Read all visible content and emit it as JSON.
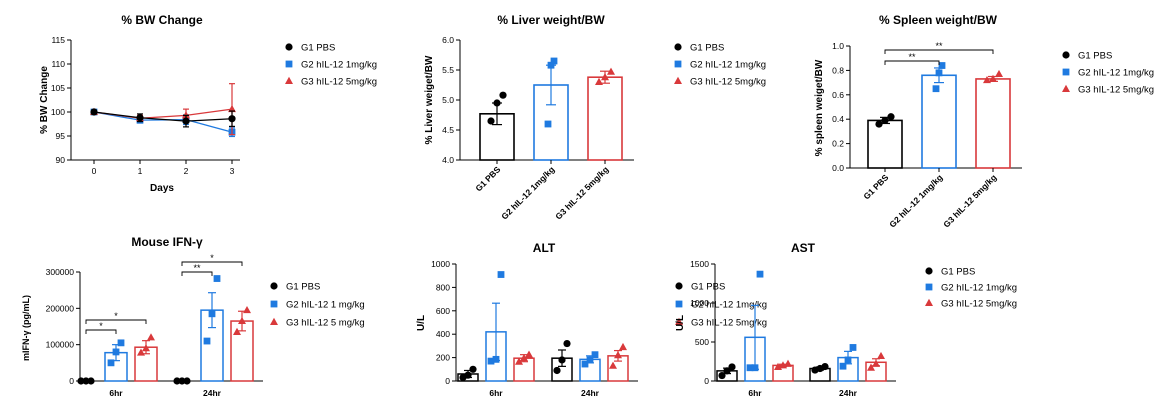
{
  "colors": {
    "g1": "#000000",
    "g2": "#1f7ae0",
    "g3": "#d9393b"
  },
  "legend": {
    "standard": [
      "G1 PBS",
      "G2 hIL-12 1mg/kg",
      "G3 hIL-12 5mg/kg"
    ],
    "ifng": [
      "G1 PBS",
      "G2 hIL-12 1 mg/kg",
      "G3 hIL-12 5 mg/kg"
    ]
  },
  "chart_data": [
    {
      "id": "bw",
      "type": "line",
      "title": "% BW Change",
      "xlabel": "Days",
      "ylabel": "% BW Change",
      "x": [
        0,
        1,
        2,
        3
      ],
      "xticks": [
        "0",
        "1",
        "2",
        "3"
      ],
      "ylim": [
        90,
        115
      ],
      "yticks": [
        "90",
        "95",
        "100",
        "105",
        "110",
        "115"
      ],
      "series": [
        {
          "name": "G1 PBS",
          "values": [
            100,
            98.8,
            98.1,
            98.6
          ],
          "err": [
            0.4,
            0.8,
            1.2,
            1.6
          ]
        },
        {
          "name": "G2 hIL-12 1mg/kg",
          "values": [
            100,
            98.3,
            98.4,
            95.8
          ],
          "err": [
            0.3,
            0.6,
            1.0,
            0.9
          ]
        },
        {
          "name": "G3 hIL-12 5mg/kg",
          "values": [
            100,
            98.7,
            99.3,
            100.6
          ],
          "err": [
            0.3,
            0.6,
            1.3,
            5.3
          ]
        }
      ]
    },
    {
      "id": "liver",
      "type": "bar",
      "title": "% Liver weight/BW",
      "ylabel": "% Liver weiget/BW",
      "categories": [
        "G1 PBS",
        "G2 hIL-12 1mg/kg",
        "G3 hIL-12 5mg/kg"
      ],
      "ylim": [
        4.0,
        6.0
      ],
      "yticks": [
        "4.0",
        "4.5",
        "5.0",
        "5.5",
        "6.0"
      ],
      "values": [
        4.77,
        5.25,
        5.38
      ],
      "err": [
        0.18,
        0.33,
        0.1
      ],
      "points": [
        [
          4.65,
          4.95,
          5.08
        ],
        [
          4.6,
          5.58,
          5.65
        ],
        [
          5.3,
          5.38,
          5.47
        ]
      ]
    },
    {
      "id": "spleen",
      "type": "bar",
      "title": "% Spleen weight/BW",
      "ylabel": "% spleen weiget/BW",
      "categories": [
        "G1 PBS",
        "G2 hIL-12 1mg/kg",
        "G3 hIL-12 5mg/kg"
      ],
      "ylim": [
        0.0,
        1.0
      ],
      "yticks": [
        "0.0",
        "0.2",
        "0.4",
        "0.6",
        "0.8",
        "1.0"
      ],
      "values": [
        0.39,
        0.76,
        0.73
      ],
      "err": [
        0.025,
        0.06,
        0.02
      ],
      "points": [
        [
          0.36,
          0.39,
          0.42
        ],
        [
          0.65,
          0.78,
          0.84
        ],
        [
          0.72,
          0.73,
          0.77
        ]
      ],
      "annotations": [
        {
          "from": 0,
          "to": 1,
          "label": "**"
        },
        {
          "from": 0,
          "to": 2,
          "label": "**"
        }
      ]
    },
    {
      "id": "ifng",
      "type": "bar",
      "title": "Mouse IFN-γ",
      "ylabel": "mIFN-γ (pg/mL)",
      "categories": [
        "6hr",
        "24hr"
      ],
      "ylim": [
        0,
        300000
      ],
      "yticks": [
        "0",
        "100000",
        "200000",
        "300000"
      ],
      "series": [
        {
          "name": "G1 PBS",
          "values": [
            0,
            0
          ],
          "err": [
            0,
            0
          ],
          "points": [
            [
              0,
              0,
              0
            ],
            [
              0,
              0,
              0
            ]
          ]
        },
        {
          "name": "G2 hIL-12 1 mg/kg",
          "values": [
            78000,
            195000
          ],
          "err": [
            22000,
            48000
          ],
          "points": [
            [
              50000,
              80000,
              105000
            ],
            [
              110000,
              185000,
              282000
            ]
          ]
        },
        {
          "name": "G3 hIL-12 5 mg/kg",
          "values": [
            93000,
            165000
          ],
          "err": [
            18000,
            27000
          ],
          "points": [
            [
              78000,
              90000,
              120000
            ],
            [
              135000,
              165000,
              195000
            ]
          ]
        }
      ],
      "annotations": [
        {
          "group": 0,
          "from": 0,
          "to": 1,
          "label": "*"
        },
        {
          "group": 0,
          "from": 0,
          "to": 2,
          "label": "*"
        },
        {
          "group": 1,
          "from": 0,
          "to": 1,
          "label": "**"
        },
        {
          "group": 1,
          "from": 0,
          "to": 2,
          "label": "*"
        }
      ]
    },
    {
      "id": "alt",
      "type": "bar",
      "title": "ALT",
      "ylabel": "U/L",
      "categories": [
        "6hr",
        "24hr"
      ],
      "ylim": [
        0,
        1000
      ],
      "yticks": [
        "0",
        "200",
        "400",
        "600",
        "800",
        "1000"
      ],
      "series": [
        {
          "name": "G1 PBS",
          "values": [
            60,
            195
          ],
          "err": [
            30,
            70
          ],
          "points": [
            [
              30,
              50,
              100
            ],
            [
              90,
              180,
              320
            ]
          ]
        },
        {
          "name": "G2 hIL-12 1mg/kg",
          "values": [
            420,
            185
          ],
          "err": [
            245,
            30
          ],
          "points": [
            [
              170,
              185,
              910
            ],
            [
              145,
              180,
              225
            ]
          ]
        },
        {
          "name": "G3 hIL-12 5mg/kg",
          "values": [
            195,
            215
          ],
          "err": [
            30,
            45
          ],
          "points": [
            [
              165,
              195,
              225
            ],
            [
              130,
              220,
              290
            ]
          ]
        }
      ]
    },
    {
      "id": "ast",
      "type": "bar",
      "title": "AST",
      "ylabel": "U/L",
      "categories": [
        "6hr",
        "24hr"
      ],
      "ylim": [
        0,
        1500
      ],
      "yticks": [
        "0",
        "500",
        "1000",
        "1500"
      ],
      "series": [
        {
          "name": "G1 PBS",
          "values": [
            130,
            160
          ],
          "err": [
            35,
            20
          ],
          "points": [
            [
              70,
              130,
              180
            ],
            [
              140,
              160,
              185
            ]
          ]
        },
        {
          "name": "G2 hIL-12 1mg/kg",
          "values": [
            560,
            300
          ],
          "err": [
            410,
            80
          ],
          "points": [
            [
              170,
              170,
              1370
            ],
            [
              190,
              270,
              430
            ]
          ]
        },
        {
          "name": "G3 hIL-12 5mg/kg",
          "values": [
            200,
            240
          ],
          "err": [
            15,
            45
          ],
          "points": [
            [
              180,
              200,
              220
            ],
            [
              170,
              220,
              320
            ]
          ]
        }
      ]
    }
  ]
}
